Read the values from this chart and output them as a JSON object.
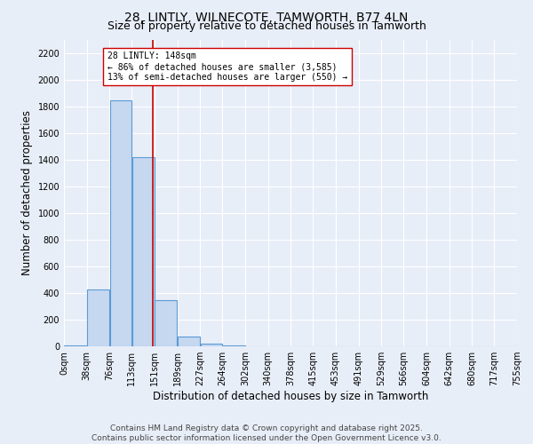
{
  "title_line1": "28, LINTLY, WILNECOTE, TAMWORTH, B77 4LN",
  "title_line2": "Size of property relative to detached houses in Tamworth",
  "xlabel": "Distribution of detached houses by size in Tamworth",
  "ylabel": "Number of detached properties",
  "bin_edges": [
    0,
    38,
    76,
    113,
    151,
    189,
    227,
    264,
    302,
    340,
    378,
    415,
    453,
    491,
    529,
    566,
    604,
    642,
    680,
    717,
    755
  ],
  "bin_labels": [
    "0sqm",
    "38sqm",
    "76sqm",
    "113sqm",
    "151sqm",
    "189sqm",
    "227sqm",
    "264sqm",
    "302sqm",
    "340sqm",
    "378sqm",
    "415sqm",
    "453sqm",
    "491sqm",
    "529sqm",
    "566sqm",
    "604sqm",
    "642sqm",
    "680sqm",
    "717sqm",
    "755sqm"
  ],
  "bar_heights": [
    10,
    430,
    1850,
    1420,
    350,
    75,
    20,
    10,
    0,
    0,
    0,
    0,
    0,
    0,
    0,
    0,
    0,
    0,
    0,
    0
  ],
  "bar_color": "#c5d8f0",
  "bar_edge_color": "#5b9bd5",
  "vline_x": 148,
  "vline_color": "#cc0000",
  "annotation_text": "28 LINTLY: 148sqm\n← 86% of detached houses are smaller (3,585)\n13% of semi-detached houses are larger (550) →",
  "annotation_box_color": "#ffffff",
  "annotation_box_edge_color": "#cc0000",
  "ylim": [
    0,
    2300
  ],
  "yticks": [
    0,
    200,
    400,
    600,
    800,
    1000,
    1200,
    1400,
    1600,
    1800,
    2000,
    2200
  ],
  "background_color": "#e8eef8",
  "grid_color": "#ffffff",
  "footer_line1": "Contains HM Land Registry data © Crown copyright and database right 2025.",
  "footer_line2": "Contains public sector information licensed under the Open Government Licence v3.0.",
  "title_fontsize": 10,
  "subtitle_fontsize": 9,
  "axis_label_fontsize": 8.5,
  "tick_fontsize": 7,
  "annotation_fontsize": 7,
  "footer_fontsize": 6.5
}
